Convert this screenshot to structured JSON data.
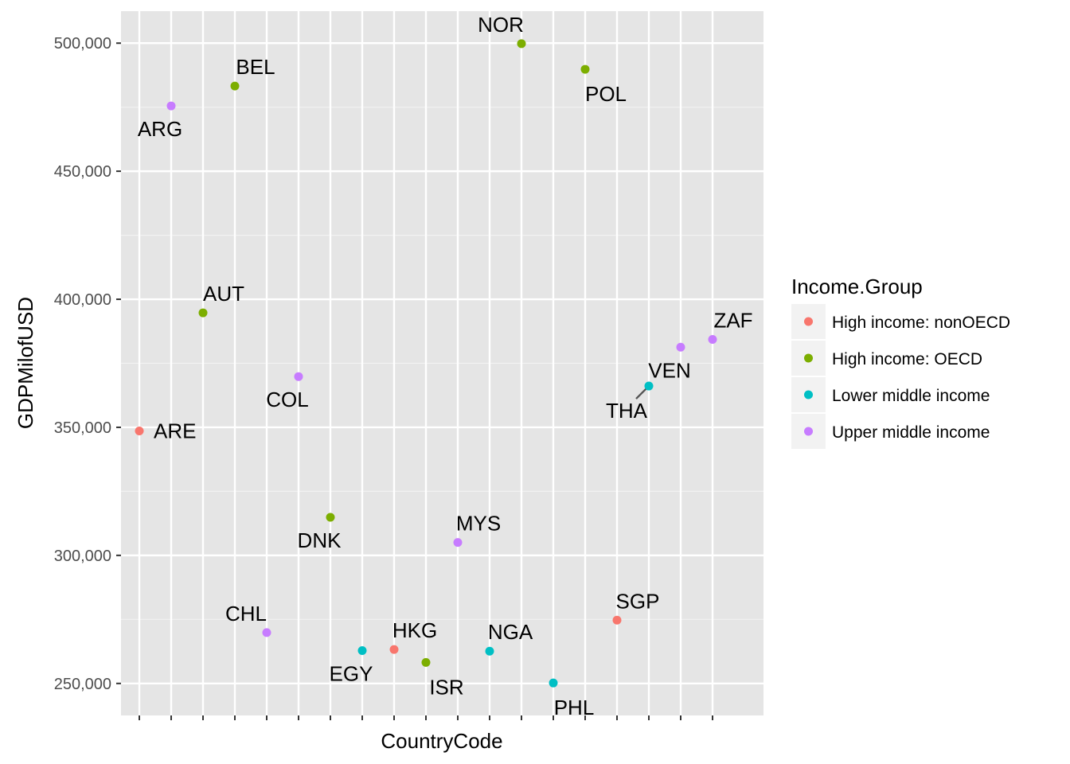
{
  "chart_data": {
    "type": "scatter",
    "xlabel": "CountryCode",
    "ylabel": "GDPMilofUSD",
    "ylim": [
      237500,
      512500
    ],
    "yticks": [
      250000,
      300000,
      350000,
      400000,
      450000,
      500000
    ],
    "ytick_labels": [
      "250,000",
      "300,000",
      "350,000",
      "400,000",
      "450,000",
      "500,000"
    ],
    "x_categories": [
      "ARE",
      "ARG",
      "AUT",
      "BEL",
      "CHL",
      "COL",
      "DNK",
      "EGY",
      "HKG",
      "ISR",
      "MYS",
      "NGA",
      "NOR",
      "PHL",
      "POL",
      "SGP",
      "THA",
      "VEN",
      "ZAF"
    ],
    "x_tick_labels_shown": false,
    "grid": true,
    "legend": {
      "title": "Income.Group",
      "placement": "right",
      "items": [
        {
          "label": "High income: nonOECD",
          "color": "#F8766D"
        },
        {
          "label": "High income: OECD",
          "color": "#7CAE00"
        },
        {
          "label": "Lower middle income",
          "color": "#00BFC4"
        },
        {
          "label": "Upper middle income",
          "color": "#C77CFF"
        }
      ]
    },
    "points": [
      {
        "label": "ARE",
        "x": "ARE",
        "y": 348595,
        "group": "High income: nonOECD",
        "label_pos": "right"
      },
      {
        "label": "ARG",
        "x": "ARG",
        "y": 475502,
        "group": "Upper middle income",
        "label_pos": "below-left"
      },
      {
        "label": "AUT",
        "x": "AUT",
        "y": 394708,
        "group": "High income: OECD",
        "label_pos": "above-right"
      },
      {
        "label": "BEL",
        "x": "BEL",
        "y": 483262,
        "group": "High income: OECD",
        "label_pos": "above-right"
      },
      {
        "label": "CHL",
        "x": "CHL",
        "y": 269869,
        "group": "Upper middle income",
        "label_pos": "above-left"
      },
      {
        "label": "COL",
        "x": "COL",
        "y": 369813,
        "group": "Upper middle income",
        "label_pos": "below-left"
      },
      {
        "label": "DNK",
        "x": "DNK",
        "y": 314887,
        "group": "High income: OECD",
        "label_pos": "below-left"
      },
      {
        "label": "EGY",
        "x": "EGY",
        "y": 262832,
        "group": "Lower middle income",
        "label_pos": "below-left"
      },
      {
        "label": "HKG",
        "x": "HKG",
        "y": 263259,
        "group": "High income: nonOECD",
        "label_pos": "above-right"
      },
      {
        "label": "ISR",
        "x": "ISR",
        "y": 258217,
        "group": "High income: OECD",
        "label_pos": "below-right"
      },
      {
        "label": "MYS",
        "x": "MYS",
        "y": 305033,
        "group": "Upper middle income",
        "label_pos": "above-right"
      },
      {
        "label": "NGA",
        "x": "NGA",
        "y": 262597,
        "group": "Lower middle income",
        "label_pos": "above-right"
      },
      {
        "label": "NOR",
        "x": "NOR",
        "y": 499817,
        "group": "High income: OECD",
        "label_pos": "above-left"
      },
      {
        "label": "PHL",
        "x": "PHL",
        "y": 250182,
        "group": "Lower middle income",
        "label_pos": "below-right"
      },
      {
        "label": "POL",
        "x": "POL",
        "y": 489795,
        "group": "High income: OECD",
        "label_pos": "below-right"
      },
      {
        "label": "SGP",
        "x": "SGP",
        "y": 274701,
        "group": "High income: nonOECD",
        "label_pos": "above-right"
      },
      {
        "label": "THA",
        "x": "THA",
        "y": 366126,
        "group": "Lower middle income",
        "label_pos": "below-left",
        "leader_line": true
      },
      {
        "label": "VEN",
        "x": "VEN",
        "y": 381286,
        "group": "Upper middle income",
        "label_pos": "below-left"
      },
      {
        "label": "ZAF",
        "x": "ZAF",
        "y": 384313,
        "group": "Upper middle income",
        "label_pos": "above-right"
      }
    ]
  }
}
